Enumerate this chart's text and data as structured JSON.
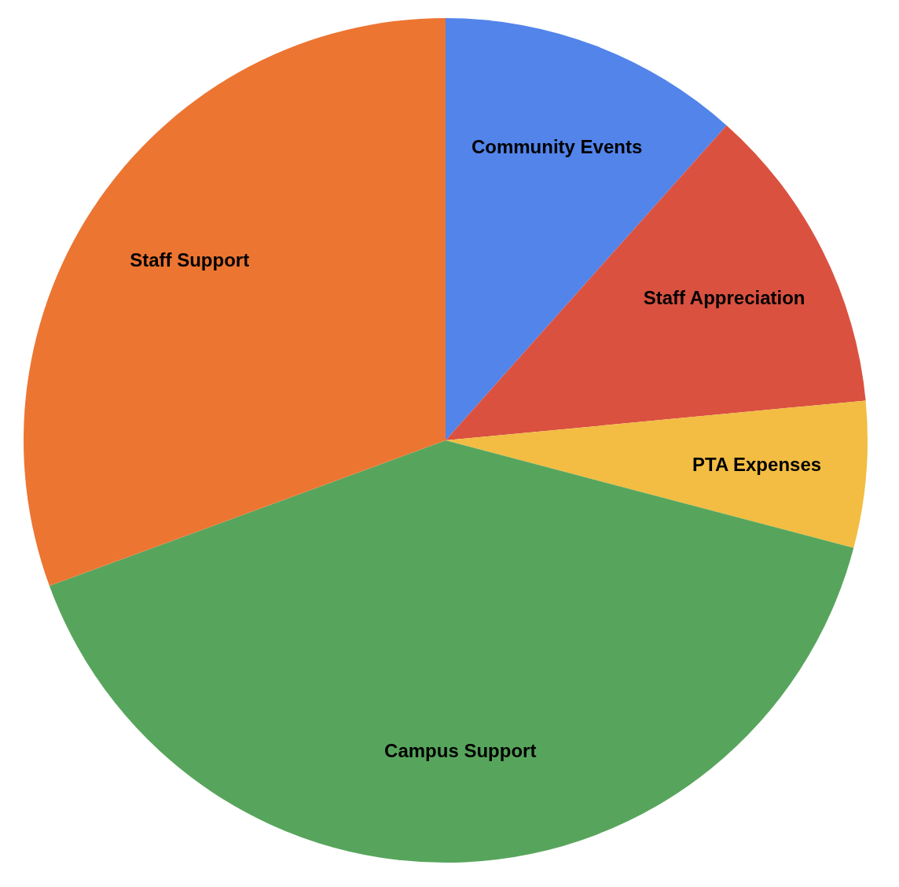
{
  "chart_data": {
    "type": "pie",
    "categories": [
      "Community Events",
      "Staff Appreciation",
      "PTA Expenses",
      "Campus Support",
      "Staff Support"
    ],
    "values": [
      11.6,
      11.9,
      5.6,
      40.3,
      30.6
    ],
    "colors": [
      "#5284ea",
      "#da5140",
      "#f2bd42",
      "#57a55c",
      "#ec7532"
    ],
    "legend": false
  }
}
